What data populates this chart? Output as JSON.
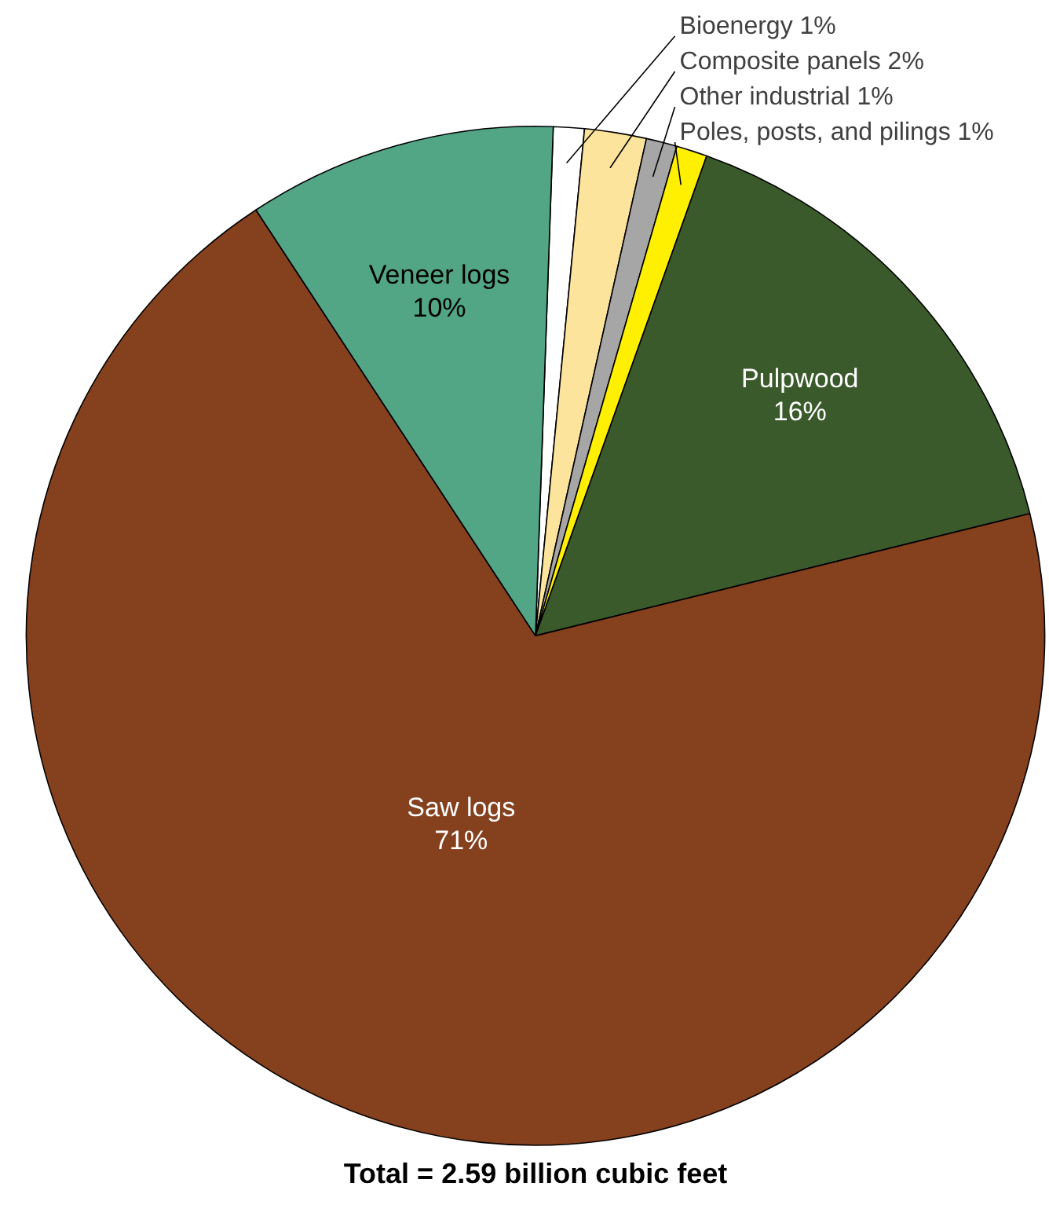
{
  "chart_data": {
    "type": "pie",
    "title": "Total = 2.59 billion cubic feet",
    "categories": [
      "Bioenergy",
      "Composite panels",
      "Other industrial",
      "Poles, posts, and pilings",
      "Pulpwood",
      "Saw logs",
      "Veneer logs"
    ],
    "values": [
      1,
      2,
      1,
      1,
      16,
      71,
      10
    ],
    "colors": [
      "#ffffff",
      "#fde49c",
      "#a6a6a6",
      "#ffef00",
      "#3b5a2b",
      "#85401e",
      "#52a585"
    ],
    "value_labels": [
      "1%",
      "2%",
      "1%",
      "1%",
      "16%",
      "71%",
      "10%"
    ]
  }
}
